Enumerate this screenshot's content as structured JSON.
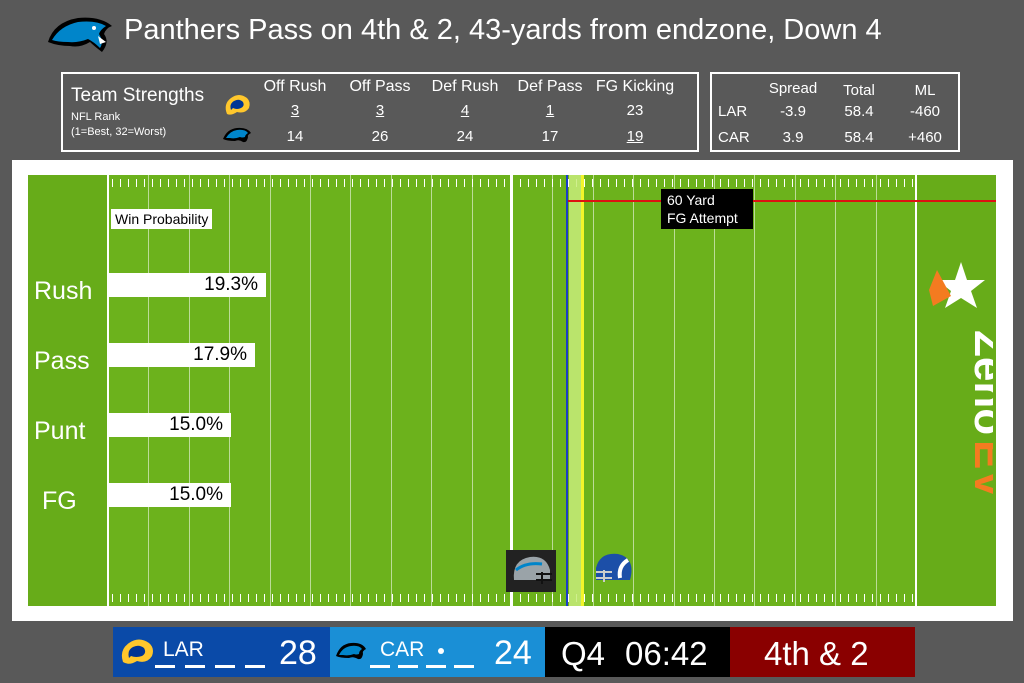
{
  "header": {
    "title": "Panthers Pass on 4th & 2, 43-yards from endzone, Down 4",
    "logo": "panthers-logo"
  },
  "strengths": {
    "title": "Team Strengths",
    "subtitle1": "NFL Rank",
    "subtitle2": "(1=Best, 32=Worst)",
    "columns": [
      {
        "header": "Off Rush",
        "lar": "3",
        "car": "14"
      },
      {
        "header": "Off Pass",
        "lar": "3",
        "car": "26"
      },
      {
        "header": "Def Rush",
        "lar": "4",
        "car": "24"
      },
      {
        "header": "Def Pass",
        "lar": "1",
        "car": "17"
      },
      {
        "header": "FG Kicking",
        "lar": "23",
        "car": "19"
      }
    ]
  },
  "odds": {
    "headers": {
      "spread": "Spread",
      "total": "Total",
      "ml": "ML"
    },
    "lar": {
      "team": "LAR",
      "spread": "-3.9",
      "total": "58.4",
      "ml": "-460"
    },
    "car": {
      "team": "CAR",
      "spread": "3.9",
      "total": "58.4",
      "ml": "+460"
    }
  },
  "field": {
    "fg_label_line1": "60 Yard",
    "fg_label_line2": "FG Attempt",
    "wp_label": "Win Probability",
    "plays": [
      {
        "name": "Rush",
        "value": "19.3%",
        "prob": 19.3
      },
      {
        "name": "Pass",
        "value": "17.9%",
        "prob": 17.9
      },
      {
        "name": "Punt",
        "value": "15.0%",
        "prob": 15.0
      },
      {
        "name": "FG",
        "value": "15.0%",
        "prob": 15.0
      }
    ],
    "brand_top": "Zeno",
    "brand_bottom": "EV"
  },
  "scoreboard": {
    "lar": {
      "abbr": "LAR",
      "score": "28"
    },
    "car": {
      "abbr": "CAR",
      "score": "24"
    },
    "quarter": "Q4",
    "clock": "06:42",
    "down": "4th & 2"
  },
  "colors": {
    "field": "#6cb21c",
    "lar": "#0a4aa8",
    "car": "#1a8fd6",
    "down_bg": "#8a0000",
    "fg_line": "#dd1111",
    "los": "#1a3cc8",
    "first_down": "#f3f52a"
  }
}
